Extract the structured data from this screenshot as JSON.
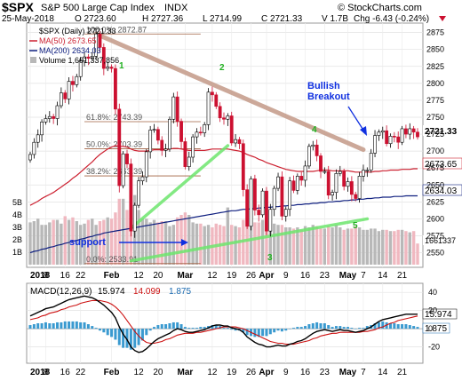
{
  "header": {
    "symbol": "$SPX",
    "name": "S&P 500 Large Cap Index",
    "exchange": "INDX",
    "copyright": "© StockCharts.com",
    "date": "25-May-2018",
    "open": "O 2723.60",
    "high": "H 2727.36",
    "low": "L 2714.99",
    "close": "C 2721.33",
    "volume": "V 1.7B",
    "change": "Chg -6.43 (-0.24%)",
    "change_icon": "down-triangle-icon"
  },
  "legend": {
    "price": "$SPX (Daily) 2721.33",
    "ma50": "MA(50) 2673.65",
    "ma200": "MA(200) 2634.03",
    "volume": "Volume 1,661,337,856"
  },
  "colors": {
    "up_candle": "#ffffff",
    "down_candle": "#cc1030",
    "ma50": "#cc2030",
    "ma200": "#102080",
    "volume_up": "#b8b8b8",
    "volume_down": "#f0b8c0",
    "trendline_down": "#c49a88",
    "trendline_up": "#6ee66e",
    "fib_line": "#a06040",
    "macd_line": "#000000",
    "signal_line": "#cc1010",
    "histogram": "#3a9ad0",
    "annotation_blue": "#1030e0",
    "annotation_green": "#20b020"
  },
  "x_axis": {
    "year": "2018",
    "labels": [
      "2018",
      "8",
      "16",
      "22",
      "Feb",
      "12",
      "20",
      "Mar",
      "12",
      "19",
      "26",
      "Apr",
      "9",
      "16",
      "23",
      "May",
      "7",
      "14",
      "21"
    ]
  },
  "price_axis": [
    "2875",
    "2850",
    "2825",
    "2800",
    "2775",
    "2750",
    "2725",
    "2700",
    "2675",
    "2650",
    "2625",
    "2600",
    "2575",
    "2550"
  ],
  "price_tags": {
    "close": "2721.33",
    "ma50": "2673.65",
    "ma200": "2634.03",
    "volume": "1661337"
  },
  "volume_axis": [
    "5B",
    "4B",
    "3B",
    "2B",
    "1B"
  ],
  "fib_levels": [
    {
      "label": "100.0%",
      "price": "2872.87"
    },
    {
      "label": "61.8%",
      "price": "2743.39"
    },
    {
      "label": "50.0%",
      "price": "2703.39"
    },
    {
      "label": "38.2%",
      "price": "2663.39"
    },
    {
      "label": "0.0%",
      "price": "2533.91"
    }
  ],
  "annotations": {
    "wave1": "1",
    "wave2": "2",
    "wave3": "3",
    "wave4": "4",
    "wave5": "5",
    "support": "support",
    "breakout_line1": "Bullish",
    "breakout_line2": "Breakout"
  },
  "macd": {
    "label": "MACD(12,26,9)",
    "macd_value": "15.974",
    "signal_value": "14.099",
    "hist_value": "1.875",
    "axis": [
      "40",
      "20",
      "0",
      "-20"
    ]
  },
  "chart_data": {
    "type": "candlestick",
    "title": "S&P 500 Large Cap Index",
    "ylim": [
      2535,
      2885
    ],
    "dates": [
      "2018-01-02",
      "2018-01-03",
      "2018-01-04",
      "2018-01-05",
      "2018-01-08",
      "2018-01-09",
      "2018-01-10",
      "2018-01-11",
      "2018-01-12",
      "2018-01-16",
      "2018-01-17",
      "2018-01-18",
      "2018-01-19",
      "2018-01-22",
      "2018-01-23",
      "2018-01-24",
      "2018-01-25",
      "2018-01-26",
      "2018-01-29",
      "2018-01-30",
      "2018-01-31",
      "2018-02-01",
      "2018-02-02",
      "2018-02-05",
      "2018-02-06",
      "2018-02-07",
      "2018-02-08",
      "2018-02-09",
      "2018-02-12",
      "2018-02-13",
      "2018-02-14",
      "2018-02-15",
      "2018-02-16",
      "2018-02-20",
      "2018-02-21",
      "2018-02-22",
      "2018-02-23",
      "2018-02-26",
      "2018-02-27",
      "2018-02-28",
      "2018-03-01",
      "2018-03-02",
      "2018-03-05",
      "2018-03-06",
      "2018-03-07",
      "2018-03-08",
      "2018-03-09",
      "2018-03-12",
      "2018-03-13",
      "2018-03-14",
      "2018-03-15",
      "2018-03-16",
      "2018-03-19",
      "2018-03-20",
      "2018-03-21",
      "2018-03-22",
      "2018-03-23",
      "2018-03-26",
      "2018-03-27",
      "2018-03-28",
      "2018-03-29",
      "2018-04-02",
      "2018-04-03",
      "2018-04-04",
      "2018-04-05",
      "2018-04-06",
      "2018-04-09",
      "2018-04-10",
      "2018-04-11",
      "2018-04-12",
      "2018-04-13",
      "2018-04-16",
      "2018-04-17",
      "2018-04-18",
      "2018-04-19",
      "2018-04-20",
      "2018-04-23",
      "2018-04-24",
      "2018-04-25",
      "2018-04-26",
      "2018-04-27",
      "2018-04-30",
      "2018-05-01",
      "2018-05-02",
      "2018-05-03",
      "2018-05-04",
      "2018-05-07",
      "2018-05-08",
      "2018-05-09",
      "2018-05-10",
      "2018-05-11",
      "2018-05-14",
      "2018-05-15",
      "2018-05-16",
      "2018-05-17",
      "2018-05-18",
      "2018-05-21",
      "2018-05-22",
      "2018-05-23",
      "2018-05-24",
      "2018-05-25"
    ],
    "close": [
      2695,
      2713,
      2724,
      2743,
      2748,
      2751,
      2748,
      2767,
      2786,
      2777,
      2803,
      2798,
      2810,
      2833,
      2839,
      2837,
      2840,
      2873,
      2853,
      2822,
      2824,
      2822,
      2762,
      2649,
      2696,
      2681,
      2582,
      2620,
      2656,
      2662,
      2699,
      2731,
      2732,
      2716,
      2701,
      2703,
      2747,
      2780,
      2744,
      2714,
      2677,
      2691,
      2721,
      2728,
      2727,
      2739,
      2787,
      2783,
      2766,
      2749,
      2747,
      2752,
      2712,
      2717,
      2711,
      2643,
      2589,
      2659,
      2613,
      2606,
      2641,
      2582,
      2614,
      2645,
      2662,
      2604,
      2614,
      2656,
      2642,
      2663,
      2657,
      2678,
      2707,
      2709,
      2693,
      2670,
      2670,
      2635,
      2639,
      2667,
      2670,
      2648,
      2655,
      2636,
      2630,
      2663,
      2672,
      2672,
      2697,
      2723,
      2728,
      2730,
      2711,
      2722,
      2721,
      2713,
      2733,
      2725,
      2733,
      2728,
      2721
    ],
    "ma50": [
      2620,
      2623,
      2626,
      2630,
      2633,
      2636,
      2639,
      2643,
      2647,
      2651,
      2655,
      2660,
      2664,
      2669,
      2674,
      2679,
      2684,
      2690,
      2695,
      2699,
      2703,
      2706,
      2708,
      2707,
      2707,
      2706,
      2703,
      2701,
      2700,
      2700,
      2700,
      2701,
      2702,
      2702,
      2702,
      2702,
      2703,
      2704,
      2704,
      2703,
      2702,
      2701,
      2701,
      2701,
      2701,
      2701,
      2702,
      2703,
      2703,
      2703,
      2703,
      2703,
      2702,
      2701,
      2700,
      2698,
      2695,
      2693,
      2691,
      2688,
      2686,
      2683,
      2681,
      2679,
      2677,
      2675,
      2673,
      2672,
      2671,
      2670,
      2670,
      2670,
      2670,
      2670,
      2671,
      2672,
      2672,
      2672,
      2671,
      2671,
      2671,
      2671,
      2671,
      2670,
      2669,
      2669,
      2669,
      2669,
      2669,
      2670,
      2670,
      2671,
      2671,
      2672,
      2672,
      2672,
      2673,
      2673,
      2673,
      2674,
      2674
    ],
    "ma200": [
      2550,
      2552,
      2553,
      2555,
      2556,
      2558,
      2559,
      2561,
      2562,
      2564,
      2565,
      2567,
      2568,
      2570,
      2571,
      2573,
      2574,
      2576,
      2577,
      2579,
      2580,
      2581,
      2582,
      2583,
      2584,
      2585,
      2586,
      2587,
      2588,
      2589,
      2590,
      2591,
      2592,
      2593,
      2594,
      2595,
      2596,
      2597,
      2598,
      2599,
      2600,
      2601,
      2602,
      2603,
      2604,
      2605,
      2606,
      2607,
      2608,
      2609,
      2610,
      2611,
      2612,
      2612,
      2613,
      2614,
      2614,
      2615,
      2615,
      2616,
      2616,
      2617,
      2617,
      2618,
      2618,
      2619,
      2619,
      2620,
      2620,
      2621,
      2621,
      2622,
      2622,
      2623,
      2623,
      2624,
      2624,
      2625,
      2625,
      2626,
      2626,
      2627,
      2627,
      2628,
      2628,
      2629,
      2629,
      2630,
      2630,
      2631,
      2631,
      2632,
      2632,
      2632,
      2633,
      2633,
      2633,
      2634,
      2634,
      2634,
      2634
    ],
    "volume_b": [
      3.4,
      3.5,
      3.7,
      3.2,
      3.2,
      3.4,
      3.6,
      3.6,
      3.3,
      3.9,
      3.6,
      3.8,
      3.5,
      3.2,
      3.3,
      3.6,
      3.7,
      3.2,
      3.5,
      3.6,
      3.8,
      3.7,
      4.2,
      5.3,
      5.3,
      4.4,
      4.9,
      5.6,
      4.4,
      3.7,
      3.7,
      3.4,
      3.6,
      3.4,
      3.5,
      3.5,
      3.1,
      3.2,
      3.8,
      4.0,
      4.2,
      4.0,
      3.4,
      3.3,
      3.3,
      3.1,
      3.2,
      3.0,
      3.3,
      3.2,
      3.1,
      4.6,
      3.2,
      3.1,
      3.0,
      3.6,
      3.9,
      3.6,
      3.4,
      3.4,
      3.6,
      3.7,
      3.5,
      3.3,
      3.2,
      3.2,
      3.0,
      3.0,
      2.9,
      3.0,
      2.8,
      3.1,
      3.0,
      3.2,
      3.1,
      2.9,
      2.9,
      3.1,
      3.0,
      3.2,
      3.0,
      2.8,
      2.9,
      2.9,
      3.1,
      3.0,
      2.8,
      2.8,
      2.9,
      2.9,
      2.7,
      2.8,
      2.8,
      2.7,
      2.7,
      2.8,
      2.8,
      2.7,
      2.6,
      2.7,
      1.7
    ],
    "macd": [
      14,
      16,
      18,
      20,
      22,
      23,
      24,
      26,
      28,
      30,
      32,
      33,
      34,
      35,
      36,
      35,
      34,
      32,
      29,
      26,
      22,
      18,
      12,
      2,
      -6,
      -12,
      -20,
      -24,
      -26,
      -25,
      -22,
      -18,
      -14,
      -11,
      -9,
      -7,
      -5,
      -2,
      0,
      -1,
      -3,
      -4,
      -4,
      -3,
      -2,
      -1,
      1,
      3,
      4,
      4,
      3,
      3,
      1,
      0,
      -1,
      -4,
      -9,
      -12,
      -15,
      -17,
      -18,
      -20,
      -20,
      -19,
      -18,
      -19,
      -19,
      -17,
      -16,
      -14,
      -13,
      -11,
      -8,
      -5,
      -3,
      -2,
      -1,
      -2,
      -3,
      -2,
      -1,
      -2,
      -2,
      -3,
      -4,
      -3,
      -2,
      0,
      2,
      5,
      8,
      10,
      11,
      12,
      13,
      14,
      15,
      16,
      16,
      16,
      16
    ],
    "signal": [
      10,
      11,
      12,
      14,
      15,
      17,
      18,
      19,
      21,
      22,
      24,
      25,
      26,
      28,
      29,
      30,
      31,
      31,
      31,
      30,
      29,
      27,
      24,
      20,
      15,
      9,
      3,
      -3,
      -8,
      -12,
      -15,
      -16,
      -16,
      -15,
      -14,
      -12,
      -11,
      -9,
      -7,
      -6,
      -5,
      -5,
      -5,
      -4,
      -4,
      -3,
      -2,
      -1,
      0,
      1,
      2,
      2,
      2,
      2,
      1,
      0,
      -2,
      -4,
      -6,
      -8,
      -10,
      -12,
      -14,
      -15,
      -16,
      -16,
      -17,
      -17,
      -17,
      -16,
      -15,
      -14,
      -13,
      -11,
      -10,
      -8,
      -7,
      -6,
      -5,
      -5,
      -4,
      -4,
      -4,
      -4,
      -4,
      -4,
      -3,
      -3,
      -2,
      -1,
      1,
      2,
      4,
      6,
      7,
      9,
      10,
      11,
      12,
      13,
      14
    ]
  }
}
